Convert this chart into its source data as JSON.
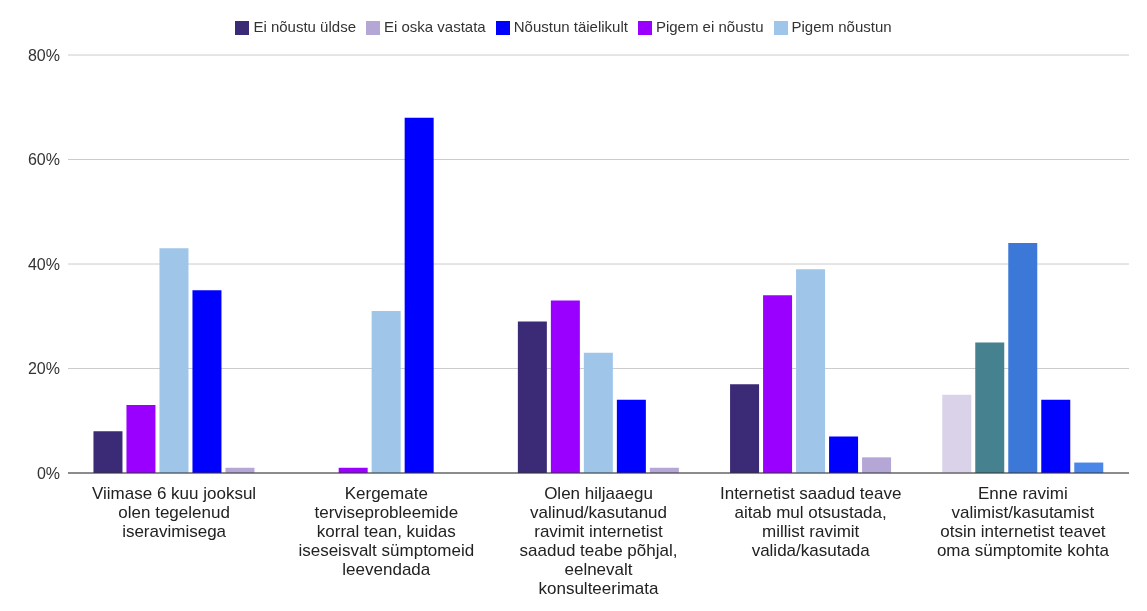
{
  "chart_data": {
    "type": "bar",
    "categories": [
      "Viimase 6 kuu jooksul olen tegelenud iseravimisega",
      "Kergemate terviseprobleemide korral tean, kuidas iseseisvalt sümptomeid leevendada",
      "Olen hiljaaegu valinud/kasutanud ravimit internetist saadud teabe põhjal, eelnevalt konsulteerimata",
      "Internetist saadud teave aitab mul otsustada, millist ravimit valida/kasutada",
      "Enne ravimi valimist/kasutamist otsin internetist teavet oma sümptomite kohta"
    ],
    "series": [
      {
        "name": "Ei nõustu üldse",
        "color": "#3b2a75",
        "colors": [
          "#3b2a75",
          "#3b2a75",
          "#3b2a75",
          "#3b2a75",
          "#d9d2e9"
        ],
        "values": [
          8,
          0,
          29,
          17,
          15
        ]
      },
      {
        "name": "Pigem ei nõustu",
        "color": "#9900ff",
        "colors": [
          "#9900ff",
          "#9900ff",
          "#9900ff",
          "#9900ff",
          "#45818e"
        ],
        "values": [
          13,
          1,
          33,
          34,
          25
        ]
      },
      {
        "name": "Pigem nõustun",
        "color": "#9fc5e8",
        "colors": [
          "#9fc5e8",
          "#9fc5e8",
          "#9fc5e8",
          "#9fc5e8",
          "#3c78d8"
        ],
        "values": [
          43,
          31,
          23,
          39,
          44
        ]
      },
      {
        "name": "Nõustun täielikult",
        "color": "#0000ff",
        "colors": [
          "#0000ff",
          "#0000ff",
          "#0000ff",
          "#0000ff",
          "#0000ff"
        ],
        "values": [
          35,
          68,
          14,
          7,
          14
        ]
      },
      {
        "name": "Ei oska vastata",
        "color": "#b4a7d6",
        "colors": [
          "#b4a7d6",
          "#b4a7d6",
          "#b4a7d6",
          "#b4a7d6",
          "#4a86e8"
        ],
        "values": [
          1,
          0,
          1,
          3,
          2
        ]
      }
    ],
    "ylim": [
      0,
      80
    ],
    "yticks": [
      {
        "value": 0,
        "label": "0%"
      },
      {
        "value": 20,
        "label": "20%"
      },
      {
        "value": 40,
        "label": "40%"
      },
      {
        "value": 60,
        "label": "60%"
      },
      {
        "value": 80,
        "label": "80%"
      }
    ],
    "grid": "y",
    "legend": "top"
  }
}
